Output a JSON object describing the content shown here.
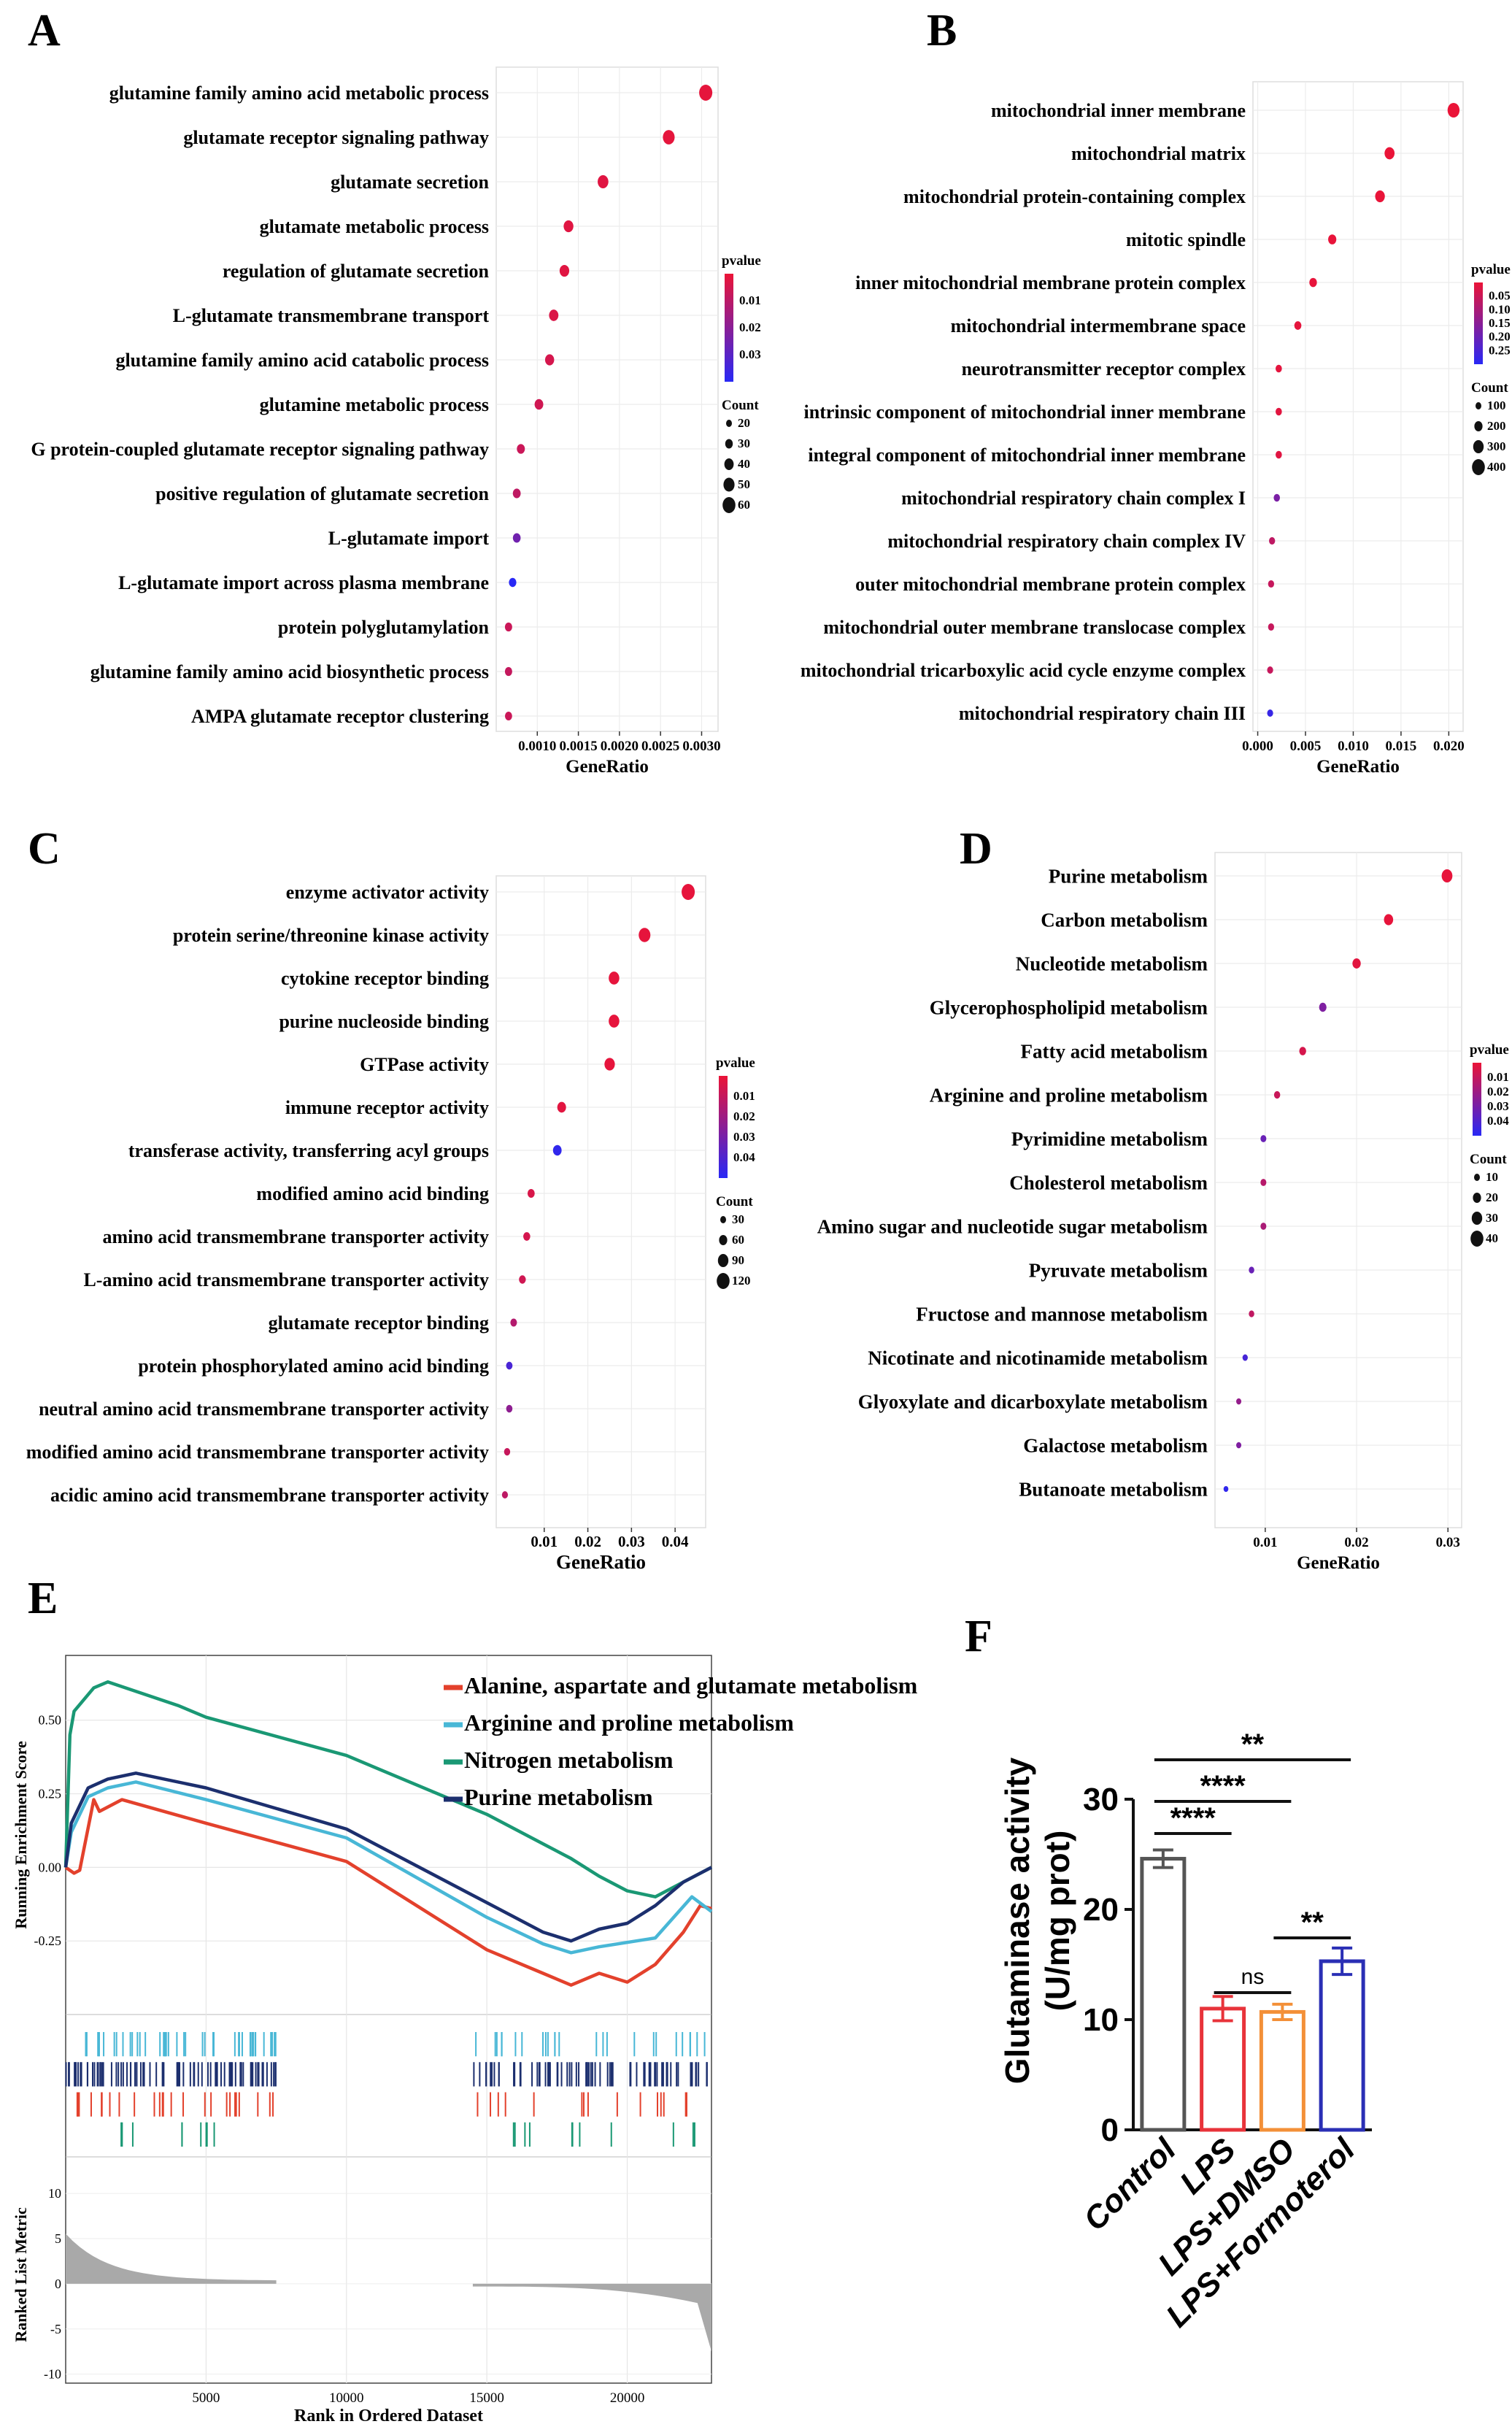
{
  "panels": {
    "A": {
      "letter": "A",
      "chart_data": {
        "type": "scatter",
        "terms": [
          "glutamine family amino acid metabolic process",
          "glutamate receptor signaling pathway",
          "glutamate secretion",
          "glutamate metabolic process",
          "regulation of glutamate secretion",
          "L-glutamate transmembrane transport",
          "glutamine family amino acid catabolic process",
          "glutamine metabolic process",
          "G protein-coupled glutamate receptor signaling pathway",
          "positive regulation of glutamate secretion",
          "L-glutamate import",
          "L-glutamate import across plasma membrane",
          "protein polyglutamylation",
          "glutamine family amino acid biosynthetic process",
          "AMPA glutamate receptor clustering"
        ],
        "gene_ratio": [
          0.00305,
          0.0026,
          0.0018,
          0.00138,
          0.00133,
          0.0012,
          0.00115,
          0.00102,
          0.0008,
          0.00075,
          0.00075,
          0.0007,
          0.00065,
          0.00065,
          0.00065
        ],
        "pvalue": [
          0.001,
          0.001,
          0.002,
          0.002,
          0.002,
          0.003,
          0.004,
          0.005,
          0.006,
          0.008,
          0.022,
          0.035,
          0.006,
          0.007,
          0.006
        ],
        "count": [
          60,
          50,
          42,
          35,
          34,
          32,
          30,
          27,
          22,
          21,
          20,
          18,
          17,
          17,
          16
        ],
        "xlabel": "GeneRatio",
        "xticks": [
          0.001,
          0.0015,
          0.002,
          0.0025,
          0.003
        ],
        "xtick_labels": [
          "0.0010",
          "0.0015",
          "0.0020",
          "0.0025",
          "0.0030"
        ],
        "xlim": [
          0.0005,
          0.0032
        ],
        "pvalue_title": "pvalue",
        "pvalue_ticks": [
          "0.01",
          "0.02",
          "0.03"
        ],
        "pvalue_range": [
          0.0,
          0.035
        ],
        "count_title": "Count",
        "count_legend": [
          "20",
          "30",
          "40",
          "50",
          "60"
        ]
      }
    },
    "B": {
      "letter": "B",
      "chart_data": {
        "type": "scatter",
        "terms": [
          "mitochondrial inner membrane",
          "mitochondrial matrix",
          "mitochondrial protein-containing complex",
          "mitotic spindle",
          "inner mitochondrial membrane protein complex",
          "mitochondrial intermembrane space",
          "neurotransmitter receptor complex",
          "intrinsic component of mitochondrial inner membrane",
          "integral component of mitochondrial inner membrane",
          "mitochondrial respiratory chain complex I",
          "mitochondrial respiratory chain complex IV",
          "outer mitochondrial membrane protein complex",
          "mitochondrial outer membrane translocase complex",
          "mitochondrial tricarboxylic acid cycle enzyme complex",
          "mitochondrial respiratory chain III"
        ],
        "gene_ratio": [
          0.0205,
          0.0138,
          0.0128,
          0.0078,
          0.0058,
          0.0042,
          0.0022,
          0.0022,
          0.0022,
          0.002,
          0.0015,
          0.0014,
          0.0014,
          0.0013,
          0.0013
        ],
        "pvalue": [
          0.001,
          0.002,
          0.003,
          0.004,
          0.005,
          0.008,
          0.01,
          0.012,
          0.015,
          0.15,
          0.06,
          0.05,
          0.05,
          0.05,
          0.24
        ],
        "count": [
          430,
          300,
          280,
          180,
          140,
          110,
          60,
          58,
          58,
          55,
          45,
          42,
          42,
          40,
          38
        ],
        "xlabel": "GeneRatio",
        "xticks": [
          0.0,
          0.005,
          0.01,
          0.015,
          0.02
        ],
        "xtick_labels": [
          "0.000",
          "0.005",
          "0.010",
          "0.015",
          "0.020"
        ],
        "xlim": [
          -0.0005,
          0.0215
        ],
        "pvalue_title": "pvalue",
        "pvalue_ticks": [
          "0.05",
          "0.10",
          "0.15",
          "0.20",
          "0.25"
        ],
        "pvalue_range": [
          0.0,
          0.26
        ],
        "count_title": "Count",
        "count_legend": [
          "100",
          "200",
          "300",
          "400"
        ]
      }
    },
    "C": {
      "letter": "C",
      "chart_data": {
        "type": "scatter",
        "terms": [
          "enzyme activator activity",
          "protein serine/threonine kinase activity",
          "cytokine receptor binding",
          "purine nucleoside binding",
          "GTPase activity",
          "immune receptor activity",
          "transferase activity, transferring acyl groups",
          "modified amino acid binding",
          "amino acid transmembrane transporter activity",
          "L-amino acid transmembrane transporter activity",
          "glutamate receptor binding",
          "protein phosphorylated amino acid binding",
          "neutral amino acid transmembrane transporter activity",
          "modified amino acid transmembrane transporter activity",
          "acidic amino acid transmembrane transporter activity"
        ],
        "gene_ratio": [
          0.043,
          0.033,
          0.026,
          0.026,
          0.025,
          0.014,
          0.013,
          0.007,
          0.006,
          0.005,
          0.003,
          0.002,
          0.002,
          0.0015,
          0.001
        ],
        "pvalue": [
          0.001,
          0.001,
          0.001,
          0.001,
          0.001,
          0.002,
          0.04,
          0.004,
          0.005,
          0.006,
          0.012,
          0.035,
          0.02,
          0.008,
          0.01
        ],
        "count": [
          120,
          100,
          85,
          85,
          82,
          60,
          58,
          38,
          36,
          34,
          30,
          28,
          26,
          24,
          22
        ],
        "xlabel": "GeneRatio",
        "xticks": [
          0.01,
          0.02,
          0.03,
          0.04
        ],
        "xtick_labels": [
          "0.01",
          "0.02",
          "0.03",
          "0.04"
        ],
        "xlim": [
          -0.001,
          0.047
        ],
        "pvalue_title": "pvalue",
        "pvalue_ticks": [
          "0.01",
          "0.02",
          "0.03",
          "0.04"
        ],
        "pvalue_range": [
          0.0,
          0.042
        ],
        "count_title": "Count",
        "count_legend": [
          "30",
          "60",
          "90",
          "120"
        ]
      }
    },
    "D": {
      "letter": "D",
      "chart_data": {
        "type": "scatter",
        "terms": [
          "Purine metabolism",
          "Carbon metabolism",
          "Nucleotide metabolism",
          "Glycerophospholipid metabolism",
          "Fatty acid metabolism",
          "Arginine and proline metabolism",
          "Pyrimidine metabolism",
          "Cholesterol metabolism",
          "Amino sugar and nucleotide sugar metabolism",
          "Pyruvate metabolism",
          "Fructose and mannose metabolism",
          "Nicotinate and nicotinamide metabolism",
          "Glyoxylate and dicarboxylate metabolism",
          "Galactose metabolism",
          "Butanoate metabolism"
        ],
        "gene_ratio": [
          0.0299,
          0.0235,
          0.02,
          0.0163,
          0.0141,
          0.0113,
          0.0098,
          0.0098,
          0.0098,
          0.0085,
          0.0085,
          0.0078,
          0.0071,
          0.0071,
          0.0057
        ],
        "pvalue": [
          0.001,
          0.001,
          0.002,
          0.025,
          0.005,
          0.008,
          0.03,
          0.012,
          0.015,
          0.03,
          0.01,
          0.038,
          0.02,
          0.025,
          0.043
        ],
        "count": [
          42,
          33,
          28,
          23,
          20,
          16,
          14,
          14,
          14,
          12,
          12,
          11,
          10,
          10,
          8
        ],
        "xlabel": "GeneRatio",
        "xticks": [
          0.01,
          0.02,
          0.03
        ],
        "xtick_labels": [
          "0.01",
          "0.02",
          "0.03"
        ],
        "xlim": [
          0.0045,
          0.0315
        ],
        "pvalue_title": "pvalue",
        "pvalue_ticks": [
          "0.01",
          "0.02",
          "0.03",
          "0.04"
        ],
        "pvalue_range": [
          0.0,
          0.045
        ],
        "count_title": "Count",
        "count_legend": [
          "10",
          "20",
          "30",
          "40"
        ]
      }
    },
    "E": {
      "letter": "E",
      "chart_data": {
        "type": "line",
        "ylabel_top": "Running Enrichment Score",
        "ylabel_bottom": "Ranked List Metric",
        "xlabel": "Rank in Ordered Dataset",
        "xlim": [
          0,
          23000
        ],
        "ylim_top": [
          -0.5,
          0.72
        ],
        "ylim_bottom": [
          -11,
          13
        ],
        "xticks": [
          5000,
          10000,
          15000,
          20000
        ],
        "xtick_labels": [
          "5000",
          "10000",
          "15000",
          "20000"
        ],
        "yticks_top": [
          0.5,
          0.25,
          0.0,
          -0.25
        ],
        "ytick_labels_top": [
          "0.50",
          "0.25",
          "0.00",
          "-0.25"
        ],
        "yticks_bottom": [
          10,
          5,
          0,
          -5,
          -10
        ],
        "ytick_labels_bottom": [
          "10",
          "5",
          "0",
          "-5",
          "-10"
        ],
        "series": [
          {
            "name": "Alanine, aspartate and glutamate metabolism",
            "color": "#e3412c",
            "points": [
              [
                0,
                0.0
              ],
              [
                300,
                -0.02
              ],
              [
                500,
                -0.01
              ],
              [
                1000,
                0.23
              ],
              [
                1200,
                0.19
              ],
              [
                2000,
                0.23
              ],
              [
                5000,
                0.15
              ],
              [
                10000,
                0.02
              ],
              [
                15000,
                -0.28
              ],
              [
                17000,
                -0.36
              ],
              [
                18000,
                -0.4
              ],
              [
                19000,
                -0.36
              ],
              [
                20000,
                -0.39
              ],
              [
                21000,
                -0.33
              ],
              [
                22000,
                -0.22
              ],
              [
                22600,
                -0.13
              ],
              [
                23000,
                -0.14
              ]
            ]
          },
          {
            "name": "Arginine and proline metabolism",
            "color": "#48b7d6",
            "points": [
              [
                0,
                0.0
              ],
              [
                200,
                0.12
              ],
              [
                800,
                0.24
              ],
              [
                1500,
                0.27
              ],
              [
                2500,
                0.29
              ],
              [
                5000,
                0.23
              ],
              [
                10000,
                0.1
              ],
              [
                15000,
                -0.17
              ],
              [
                17000,
                -0.26
              ],
              [
                18000,
                -0.29
              ],
              [
                19000,
                -0.27
              ],
              [
                21000,
                -0.24
              ],
              [
                22300,
                -0.1
              ],
              [
                23000,
                -0.15
              ]
            ]
          },
          {
            "name": "Nitrogen metabolism",
            "color": "#1a9874",
            "points": [
              [
                0,
                0.0
              ],
              [
                150,
                0.45
              ],
              [
                300,
                0.53
              ],
              [
                1000,
                0.61
              ],
              [
                1500,
                0.63
              ],
              [
                4000,
                0.55
              ],
              [
                5000,
                0.51
              ],
              [
                10000,
                0.38
              ],
              [
                15000,
                0.18
              ],
              [
                17000,
                0.08
              ],
              [
                18000,
                0.03
              ],
              [
                19000,
                -0.03
              ],
              [
                20000,
                -0.08
              ],
              [
                21000,
                -0.1
              ],
              [
                22000,
                -0.05
              ],
              [
                23000,
                0.0
              ]
            ]
          },
          {
            "name": "Purine metabolism",
            "color": "#1c2f6e",
            "points": [
              [
                0,
                0.0
              ],
              [
                200,
                0.15
              ],
              [
                800,
                0.27
              ],
              [
                1500,
                0.3
              ],
              [
                2500,
                0.32
              ],
              [
                5000,
                0.27
              ],
              [
                10000,
                0.13
              ],
              [
                15000,
                -0.12
              ],
              [
                17000,
                -0.22
              ],
              [
                18000,
                -0.25
              ],
              [
                19000,
                -0.21
              ],
              [
                20000,
                -0.19
              ],
              [
                21000,
                -0.13
              ],
              [
                22000,
                -0.05
              ],
              [
                23000,
                0.0
              ]
            ]
          }
        ]
      }
    },
    "F": {
      "letter": "F",
      "chart_data": {
        "type": "bar",
        "ylabel": "Glutaminase activity (U/mg prot)",
        "ylabel_line1": "Glutaminase activity",
        "ylabel_line2": "(U/mg prot)",
        "categories": [
          "Control",
          "LPS",
          "LPS+DMSO",
          "LPS+Formoterol"
        ],
        "values": [
          24.6,
          11.0,
          10.7,
          15.3
        ],
        "errors": [
          0.8,
          1.1,
          0.7,
          1.2
        ],
        "colors": [
          "#555555",
          "#e8333a",
          "#f39038",
          "#2a2fb5"
        ],
        "ylim": [
          0,
          30
        ],
        "yticks": [
          0,
          10,
          20,
          30
        ],
        "ytick_labels": [
          "0",
          "10",
          "20",
          "30"
        ],
        "significance": [
          {
            "from": 0,
            "to": 1,
            "label": "****"
          },
          {
            "from": 0,
            "to": 2,
            "label": "****"
          },
          {
            "from": 0,
            "to": 3,
            "label": "**"
          },
          {
            "from": 1,
            "to": 2,
            "label": "ns"
          },
          {
            "from": 2,
            "to": 3,
            "label": "**"
          }
        ]
      }
    }
  }
}
